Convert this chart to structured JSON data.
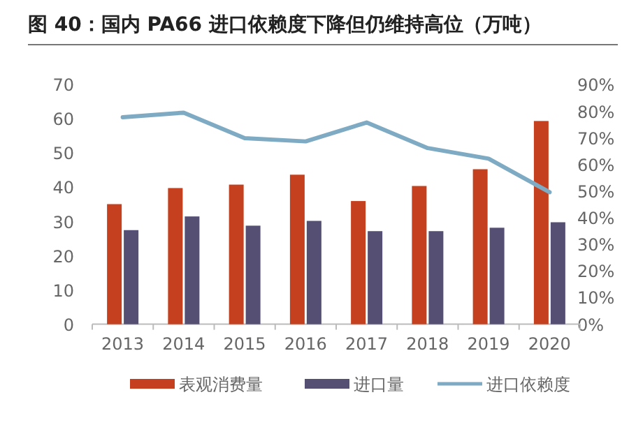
{
  "chart_data": {
    "type": "bar",
    "title": "图 40：国内 PA66 进口依赖度下降但仍维持高位（万吨）",
    "categories": [
      "2013",
      "2014",
      "2015",
      "2016",
      "2017",
      "2018",
      "2019",
      "2020"
    ],
    "series": [
      {
        "name": "表观消费量",
        "color": "#c5401f",
        "values": [
          35.1,
          39.8,
          40.8,
          43.7,
          36.0,
          40.4,
          45.3,
          59.4
        ]
      },
      {
        "name": "进口量",
        "color": "#544f73",
        "values": [
          27.5,
          31.5,
          28.8,
          30.2,
          27.2,
          27.2,
          28.2,
          29.8
        ]
      },
      {
        "name": "进口依赖度",
        "color": "#7eabc3",
        "type": "line",
        "axis": "y2",
        "values": [
          77.8,
          79.5,
          69.9,
          68.7,
          75.8,
          66.2,
          62.2,
          49.6
        ]
      }
    ],
    "ylim": [
      0,
      70
    ],
    "yticks": [
      0,
      10,
      20,
      30,
      40,
      50,
      60,
      70
    ],
    "y2lim": [
      0,
      90
    ],
    "y2ticks": [
      {
        "value": 0,
        "label": "0%"
      },
      {
        "value": 10,
        "label": "10%"
      },
      {
        "value": 20,
        "label": "20%"
      },
      {
        "value": 30,
        "label": "30%"
      },
      {
        "value": 40,
        "label": "40%"
      },
      {
        "value": 50,
        "label": "50%"
      },
      {
        "value": 60,
        "label": "60%"
      },
      {
        "value": 70,
        "label": "70%"
      },
      {
        "value": 80,
        "label": "80%"
      },
      {
        "value": 90,
        "label": "90%"
      }
    ],
    "legend": "bottom"
  }
}
